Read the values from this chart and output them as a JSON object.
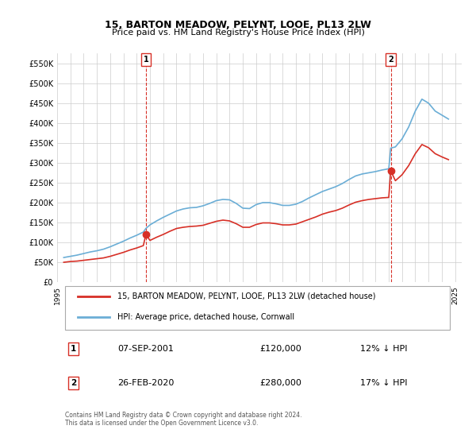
{
  "title": "15, BARTON MEADOW, PELYNT, LOOE, PL13 2LW",
  "subtitle": "Price paid vs. HM Land Registry's House Price Index (HPI)",
  "xlabel": "",
  "ylabel": "",
  "ylim": [
    0,
    575000
  ],
  "yticks": [
    0,
    50000,
    100000,
    150000,
    200000,
    250000,
    300000,
    350000,
    400000,
    450000,
    500000,
    550000
  ],
  "ytick_labels": [
    "£0",
    "£50K",
    "£100K",
    "£150K",
    "£200K",
    "£250K",
    "£300K",
    "£350K",
    "£400K",
    "£450K",
    "£500K",
    "£550K"
  ],
  "hpi_color": "#6baed6",
  "price_color": "#d73027",
  "vline_color": "#d73027",
  "transaction1": {
    "date_num": 2001.69,
    "price": 120000,
    "label": "1",
    "date_str": "07-SEP-2001"
  },
  "transaction2": {
    "date_num": 2020.15,
    "price": 280000,
    "label": "2",
    "date_str": "26-FEB-2020"
  },
  "legend_property": "15, BARTON MEADOW, PELYNT, LOOE, PL13 2LW (detached house)",
  "legend_hpi": "HPI: Average price, detached house, Cornwall",
  "footnote": "Contains HM Land Registry data © Crown copyright and database right 2024.\nThis data is licensed under the Open Government Licence v3.0.",
  "table_row1": [
    "1",
    "07-SEP-2001",
    "£120,000",
    "12% ↓ HPI"
  ],
  "table_row2": [
    "2",
    "26-FEB-2020",
    "£280,000",
    "17% ↓ HPI"
  ],
  "hpi_data": {
    "years": [
      1995.5,
      1996.0,
      1996.5,
      1997.0,
      1997.5,
      1998.0,
      1998.5,
      1999.0,
      1999.5,
      2000.0,
      2000.5,
      2001.0,
      2001.5,
      2001.69,
      2002.0,
      2002.5,
      2003.0,
      2003.5,
      2004.0,
      2004.5,
      2005.0,
      2005.5,
      2006.0,
      2006.5,
      2007.0,
      2007.5,
      2008.0,
      2008.5,
      2009.0,
      2009.5,
      2010.0,
      2010.5,
      2011.0,
      2011.5,
      2012.0,
      2012.5,
      2013.0,
      2013.5,
      2014.0,
      2014.5,
      2015.0,
      2015.5,
      2016.0,
      2016.5,
      2017.0,
      2017.5,
      2018.0,
      2018.5,
      2019.0,
      2019.5,
      2020.0,
      2020.15,
      2020.5,
      2021.0,
      2021.5,
      2022.0,
      2022.5,
      2023.0,
      2023.5,
      2024.0,
      2024.5
    ],
    "values": [
      62000,
      65000,
      68000,
      72000,
      76000,
      79000,
      83000,
      89000,
      96000,
      103000,
      111000,
      118000,
      126000,
      135000,
      144000,
      154000,
      163000,
      171000,
      179000,
      184000,
      187000,
      188000,
      192000,
      198000,
      205000,
      208000,
      207000,
      198000,
      186000,
      185000,
      195000,
      200000,
      200000,
      197000,
      193000,
      193000,
      196000,
      203000,
      212000,
      220000,
      228000,
      234000,
      240000,
      248000,
      258000,
      267000,
      272000,
      275000,
      278000,
      282000,
      285000,
      337000,
      340000,
      360000,
      390000,
      430000,
      460000,
      450000,
      430000,
      420000,
      410000
    ],
    "price_paid": [
      50000,
      52000,
      53000,
      55000,
      57000,
      59000,
      61000,
      65000,
      70000,
      75000,
      81000,
      86000,
      92000,
      120000,
      105000,
      113000,
      120000,
      128000,
      135000,
      138000,
      140000,
      141000,
      143000,
      148000,
      153000,
      156000,
      154000,
      147000,
      138000,
      138000,
      145000,
      149000,
      149000,
      147000,
      144000,
      144000,
      146000,
      152000,
      158000,
      164000,
      171000,
      176000,
      180000,
      186000,
      194000,
      201000,
      205000,
      208000,
      210000,
      212000,
      213000,
      280000,
      255000,
      270000,
      293000,
      323000,
      346000,
      338000,
      323000,
      315000,
      308000
    ]
  }
}
